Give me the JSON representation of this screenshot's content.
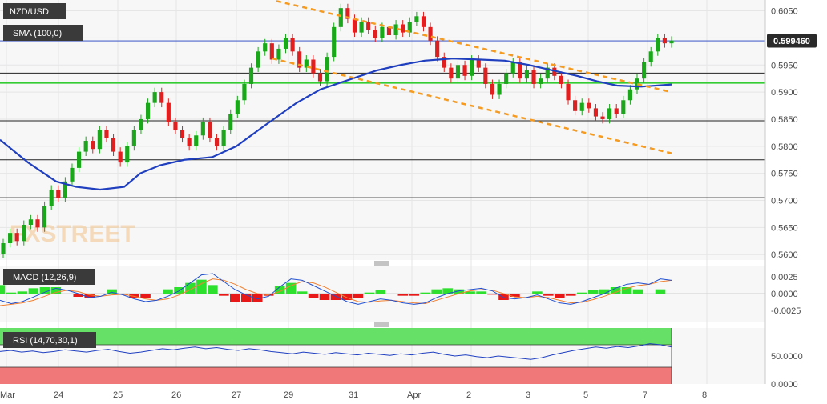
{
  "symbol": "NZD/USD",
  "watermark": "FXSTREET",
  "current_price_label": "0.599460",
  "overlays": {
    "sma": "SMA (100,0)",
    "macd": "MACD (12,26,9)",
    "rsi": "RSI (14,70,30,1)"
  },
  "colors": {
    "bull": "#1aa81a",
    "bear": "#e02020",
    "sma": "#1f3fbf",
    "trend": "#f59b22",
    "support_green": "#33cc33",
    "rsi_line": "#2040c0",
    "rsi_over": "#66e066",
    "rsi_under": "#f07878",
    "macd_line": "#2050d0",
    "signal_line": "#f08030"
  },
  "chart_data": [
    {
      "type": "candlestick",
      "title": "NZD/USD",
      "x_tick_labels": [
        "Mar",
        "24",
        "25",
        "26",
        "27",
        "29",
        "31",
        "Apr",
        "2",
        "3",
        "5",
        "7",
        "8"
      ],
      "y_tick_labels": [
        "0.6050",
        "0.6000",
        "0.5950",
        "0.5900",
        "0.5850",
        "0.5800",
        "0.5750",
        "0.5700",
        "0.5650",
        "0.5600"
      ],
      "ylim": [
        0.559,
        0.607
      ],
      "last_price": 0.59946,
      "horizontal_levels": [
        0.5935,
        0.5917,
        0.5847,
        0.5775,
        0.5705
      ],
      "support_level_green": 0.5917,
      "sma_100": [
        [
          0,
          0.5812
        ],
        [
          35,
          0.577
        ],
        [
          70,
          0.5735
        ],
        [
          95,
          0.5725
        ],
        [
          125,
          0.572
        ],
        [
          155,
          0.5725
        ],
        [
          175,
          0.575
        ],
        [
          200,
          0.5765
        ],
        [
          230,
          0.5775
        ],
        [
          265,
          0.578
        ],
        [
          295,
          0.58
        ],
        [
          330,
          0.5838
        ],
        [
          370,
          0.588
        ],
        [
          400,
          0.5905
        ],
        [
          440,
          0.5925
        ],
        [
          470,
          0.594
        ],
        [
          500,
          0.595
        ],
        [
          530,
          0.5958
        ],
        [
          565,
          0.5962
        ],
        [
          600,
          0.596
        ],
        [
          630,
          0.5958
        ],
        [
          660,
          0.595
        ],
        [
          690,
          0.594
        ],
        [
          720,
          0.593
        ],
        [
          745,
          0.592
        ],
        [
          770,
          0.5912
        ],
        [
          800,
          0.591
        ],
        [
          838,
          0.5914
        ]
      ],
      "upper_trendline": [
        [
          345,
          0.6068
        ],
        [
          838,
          0.59
        ]
      ],
      "lower_trendline": [
        [
          340,
          0.5962
        ],
        [
          838,
          0.5787
        ]
      ],
      "candles": [
        [
          0.5601,
          0.5621
        ],
        [
          0.5621,
          0.564
        ],
        [
          0.564,
          0.5625
        ],
        [
          0.5625,
          0.5655
        ],
        [
          0.5655,
          0.5665
        ],
        [
          0.5665,
          0.565
        ],
        [
          0.565,
          0.569
        ],
        [
          0.569,
          0.572
        ],
        [
          0.572,
          0.5705
        ],
        [
          0.5705,
          0.5735
        ],
        [
          0.5735,
          0.576
        ],
        [
          0.576,
          0.579
        ],
        [
          0.579,
          0.581
        ],
        [
          0.581,
          0.5795
        ],
        [
          0.5795,
          0.583
        ],
        [
          0.583,
          0.5815
        ],
        [
          0.5815,
          0.579
        ],
        [
          0.579,
          0.577
        ],
        [
          0.577,
          0.58
        ],
        [
          0.58,
          0.583
        ],
        [
          0.583,
          0.585
        ],
        [
          0.585,
          0.588
        ],
        [
          0.588,
          0.59
        ],
        [
          0.59,
          0.588
        ],
        [
          0.588,
          0.5845
        ],
        [
          0.5845,
          0.583
        ],
        [
          0.583,
          0.5815
        ],
        [
          0.5815,
          0.58
        ],
        [
          0.58,
          0.582
        ],
        [
          0.582,
          0.5845
        ],
        [
          0.5845,
          0.5815
        ],
        [
          0.5815,
          0.58
        ],
        [
          0.58,
          0.583
        ],
        [
          0.583,
          0.586
        ],
        [
          0.586,
          0.5885
        ],
        [
          0.5885,
          0.5915
        ],
        [
          0.5915,
          0.5945
        ],
        [
          0.5945,
          0.5975
        ],
        [
          0.5975,
          0.599
        ],
        [
          0.599,
          0.596
        ],
        [
          0.596,
          0.598
        ],
        [
          0.598,
          0.6
        ],
        [
          0.6,
          0.5975
        ],
        [
          0.5975,
          0.5945
        ],
        [
          0.5945,
          0.596
        ],
        [
          0.596,
          0.5935
        ],
        [
          0.5935,
          0.592
        ],
        [
          0.592,
          0.5965
        ],
        [
          0.5965,
          0.602
        ],
        [
          0.602,
          0.6055
        ],
        [
          0.6055,
          0.6035
        ],
        [
          0.6035,
          0.601
        ],
        [
          0.601,
          0.603
        ],
        [
          0.603,
          0.6015
        ],
        [
          0.6015,
          0.6
        ],
        [
          0.6,
          0.602
        ],
        [
          0.602,
          0.6005
        ],
        [
          0.6005,
          0.6025
        ],
        [
          0.6025,
          0.601
        ],
        [
          0.601,
          0.603
        ],
        [
          0.603,
          0.604
        ],
        [
          0.604,
          0.602
        ],
        [
          0.602,
          0.5995
        ],
        [
          0.5995,
          0.5965
        ],
        [
          0.5965,
          0.5945
        ],
        [
          0.5945,
          0.5925
        ],
        [
          0.5925,
          0.595
        ],
        [
          0.595,
          0.593
        ],
        [
          0.593,
          0.596
        ],
        [
          0.596,
          0.5945
        ],
        [
          0.5945,
          0.5915
        ],
        [
          0.5915,
          0.5895
        ],
        [
          0.5895,
          0.5915
        ],
        [
          0.5915,
          0.5935
        ],
        [
          0.5935,
          0.5955
        ],
        [
          0.5955,
          0.5925
        ],
        [
          0.5925,
          0.594
        ],
        [
          0.594,
          0.5915
        ],
        [
          0.5915,
          0.5925
        ],
        [
          0.5925,
          0.5945
        ],
        [
          0.5945,
          0.593
        ],
        [
          0.593,
          0.5915
        ],
        [
          0.5915,
          0.5885
        ],
        [
          0.5885,
          0.5865
        ],
        [
          0.5865,
          0.588
        ],
        [
          0.588,
          0.587
        ],
        [
          0.587,
          0.5855
        ],
        [
          0.5855,
          0.585
        ],
        [
          0.585,
          0.587
        ],
        [
          0.587,
          0.586
        ],
        [
          0.586,
          0.5885
        ],
        [
          0.5885,
          0.5905
        ],
        [
          0.5905,
          0.5925
        ],
        [
          0.5925,
          0.5955
        ],
        [
          0.5955,
          0.5975
        ],
        [
          0.5975,
          0.6
        ],
        [
          0.6,
          0.599
        ],
        [
          0.599,
          0.5995
        ]
      ]
    },
    {
      "type": "macd",
      "title": "MACD (12,26,9)",
      "y_tick_labels": [
        "0.0025",
        "0.0000",
        "-0.0025"
      ],
      "ylim": [
        -0.0042,
        0.0042
      ],
      "macd_line": [
        -0.001,
        -0.0015,
        -0.0012,
        -0.0005,
        0.0002,
        0.0008,
        0.0005,
        0.0,
        -0.0006,
        -0.0004,
        0.0002,
        -0.0002,
        -0.0008,
        -0.0012,
        -0.001,
        -0.0004,
        0.0004,
        0.0016,
        0.0028,
        0.003,
        0.0018,
        0.0006,
        -0.0002,
        -0.0008,
        -0.0004,
        0.001,
        0.0022,
        0.002,
        0.0012,
        0.0004,
        -0.0004,
        -0.0012,
        -0.0016,
        -0.0012,
        -0.0008,
        -0.001,
        -0.0014,
        -0.0016,
        -0.0014,
        -0.0006,
        0.0,
        0.0004,
        0.0006,
        0.0008,
        0.0004,
        -0.0006,
        -0.0008,
        -0.0006,
        -0.0002,
        -0.0008,
        -0.0014,
        -0.0016,
        -0.0012,
        -0.0006,
        0.0,
        0.0008,
        0.0014,
        0.0016,
        0.0014,
        0.0022,
        0.002
      ],
      "signal_line": [
        -0.0018,
        -0.0016,
        -0.0014,
        -0.001,
        -0.0004,
        0.0002,
        0.0005,
        0.0003,
        -0.0002,
        -0.0004,
        -0.0002,
        -0.0001,
        -0.0004,
        -0.0008,
        -0.001,
        -0.0008,
        -0.0002,
        0.0006,
        0.0015,
        0.0022,
        0.002,
        0.0014,
        0.0006,
        0.0,
        -0.0002,
        0.0003,
        0.0012,
        0.0018,
        0.0016,
        0.001,
        0.0002,
        -0.0006,
        -0.0012,
        -0.0013,
        -0.0011,
        -0.001,
        -0.0012,
        -0.0014,
        -0.0015,
        -0.001,
        -0.0005,
        0.0,
        0.0004,
        0.0006,
        0.0005,
        0.0,
        -0.0005,
        -0.0006,
        -0.0004,
        -0.0006,
        -0.001,
        -0.0014,
        -0.0013,
        -0.0009,
        -0.0004,
        0.0002,
        0.0008,
        0.0012,
        0.0014,
        0.0018,
        0.002
      ]
    },
    {
      "type": "rsi",
      "title": "RSI (14,70,30,1)",
      "y_tick_labels": [
        "50.0000",
        "0.0000"
      ],
      "ylim": [
        0,
        100
      ],
      "overbought": 70,
      "oversold": 30,
      "values": [
        58,
        60,
        57,
        59,
        56,
        58,
        61,
        59,
        57,
        60,
        62,
        58,
        55,
        57,
        60,
        63,
        61,
        64,
        66,
        63,
        65,
        62,
        60,
        63,
        61,
        58,
        56,
        54,
        57,
        55,
        53,
        56,
        54,
        52,
        55,
        53,
        51,
        54,
        52,
        55,
        57,
        53,
        50,
        52,
        49,
        47,
        50,
        48,
        46,
        44,
        47,
        52,
        56,
        60,
        63,
        66,
        64,
        67,
        65,
        68,
        72,
        70,
        66
      ]
    }
  ]
}
